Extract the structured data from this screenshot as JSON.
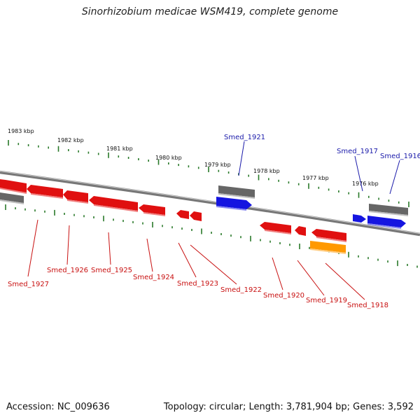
{
  "title": "Sinorhizobium medicae WSM419, complete genome",
  "footer": {
    "accession": "Accession: NC_009636",
    "summary": "Topology: circular; Length: 3,781,904 bp; Genes: 3,592"
  },
  "colors": {
    "forward_gene": "#1515e0",
    "reverse_gene": "#e01010",
    "other_gene": "#666666",
    "highlight_gene": "#ff9900",
    "forward_label": "#1a1aaa",
    "reverse_label": "#c81010",
    "tick": "#2a7a2a",
    "backbone": "#777777"
  },
  "scale_labels": [
    {
      "kbp": 1983,
      "label": "1983 kbp"
    },
    {
      "kbp": 1982,
      "label": "1982 kbp"
    },
    {
      "kbp": 1981,
      "label": "1981 kbp"
    },
    {
      "kbp": 1980,
      "label": "1980 kbp"
    },
    {
      "kbp": 1979,
      "label": "1979 kbp"
    },
    {
      "kbp": 1978,
      "label": "1978 kbp"
    },
    {
      "kbp": 1977,
      "label": "1977 kbp"
    },
    {
      "kbp": 1976,
      "label": "1976 kbp"
    }
  ],
  "gene_labels": [
    {
      "name": "Smed_1921",
      "strand": "forward"
    },
    {
      "name": "Smed_1917",
      "strand": "forward"
    },
    {
      "name": "Smed_1916",
      "strand": "forward"
    },
    {
      "name": "Smed_1927",
      "strand": "reverse"
    },
    {
      "name": "Smed_1926",
      "strand": "reverse"
    },
    {
      "name": "Smed_1925",
      "strand": "reverse"
    },
    {
      "name": "Smed_1924",
      "strand": "reverse"
    },
    {
      "name": "Smed_1923",
      "strand": "reverse"
    },
    {
      "name": "Smed_1922",
      "strand": "reverse"
    },
    {
      "name": "Smed_1920",
      "strand": "reverse"
    },
    {
      "name": "Smed_1919",
      "strand": "reverse"
    },
    {
      "name": "Smed_1918",
      "strand": "reverse"
    }
  ]
}
